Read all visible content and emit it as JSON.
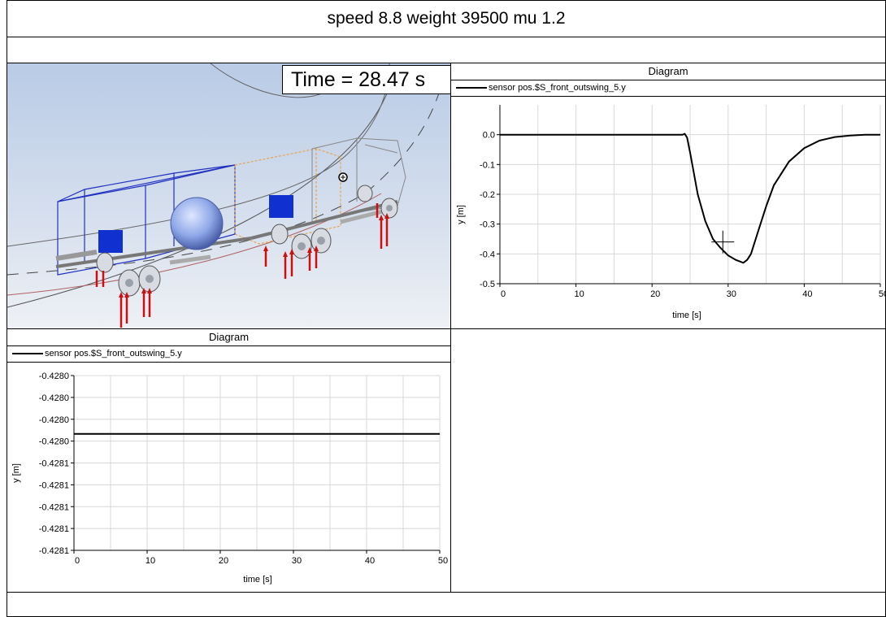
{
  "header": {
    "title": "speed 8.8 weight 39500 mu 1.2"
  },
  "animation": {
    "time_label": "Time = 28.47 s"
  },
  "diagrams": [
    {
      "title": "Diagram",
      "legend": "sensor pos.$S_front_outswing_5.y",
      "xlabel": "time [s]",
      "ylabel": "y [m]",
      "xticks": [
        "0",
        "10",
        "20",
        "30",
        "40",
        "50"
      ],
      "yticks": [
        "0.0",
        "-0.1",
        "-0.2",
        "-0.3",
        "-0.4",
        "-0.5"
      ]
    },
    {
      "title": "Diagram",
      "legend": "sensor pos.$S_front_outswing_5.y",
      "xlabel": "time [s]",
      "ylabel": "y [m]",
      "xticks": [
        "0",
        "10",
        "20",
        "30",
        "40",
        "50"
      ],
      "yticks": [
        "-0.4280",
        "-0.4280",
        "-0.4280",
        "-0.4280",
        "-0.4281",
        "-0.4281",
        "-0.4281",
        "-0.4281",
        "-0.4281"
      ]
    }
  ],
  "chart_data": [
    {
      "type": "line",
      "title": "Diagram",
      "xlabel": "time [s]",
      "ylabel": "y [m]",
      "xlim": [
        0,
        50
      ],
      "ylim": [
        -0.5,
        0.1
      ],
      "grid": true,
      "legend": "top",
      "series": [
        {
          "name": "sensor pos.$S_front_outswing_5.y",
          "x": [
            0,
            10,
            20,
            24,
            24.3,
            24.6,
            25,
            26,
            27,
            28,
            29,
            30,
            31,
            32,
            32.5,
            33,
            34,
            35,
            36,
            38,
            40,
            42,
            44,
            46,
            48,
            50
          ],
          "y": [
            0,
            0,
            0,
            0,
            0.003,
            -0.01,
            -0.06,
            -0.2,
            -0.29,
            -0.35,
            -0.38,
            -0.405,
            -0.42,
            -0.43,
            -0.42,
            -0.4,
            -0.32,
            -0.24,
            -0.17,
            -0.09,
            -0.045,
            -0.02,
            -0.008,
            -0.003,
            0,
            0
          ]
        }
      ],
      "marker": {
        "x": 29.3,
        "y": -0.36
      }
    },
    {
      "type": "line",
      "title": "Diagram",
      "xlabel": "time [s]",
      "ylabel": "y [m]",
      "xlim": [
        0,
        50
      ],
      "grid": true,
      "legend": "top",
      "series": [
        {
          "name": "sensor pos.$S_front_outswing_5.y",
          "x": [
            0,
            50
          ],
          "y": [
            -0.428,
            -0.428
          ]
        }
      ]
    }
  ],
  "colors": {
    "track_orange": "#e8a040",
    "frame_blue": "#2030c0",
    "axle_blue": "#1030d0",
    "force_red": "#cc1010",
    "tank": "#8fa8e8"
  }
}
